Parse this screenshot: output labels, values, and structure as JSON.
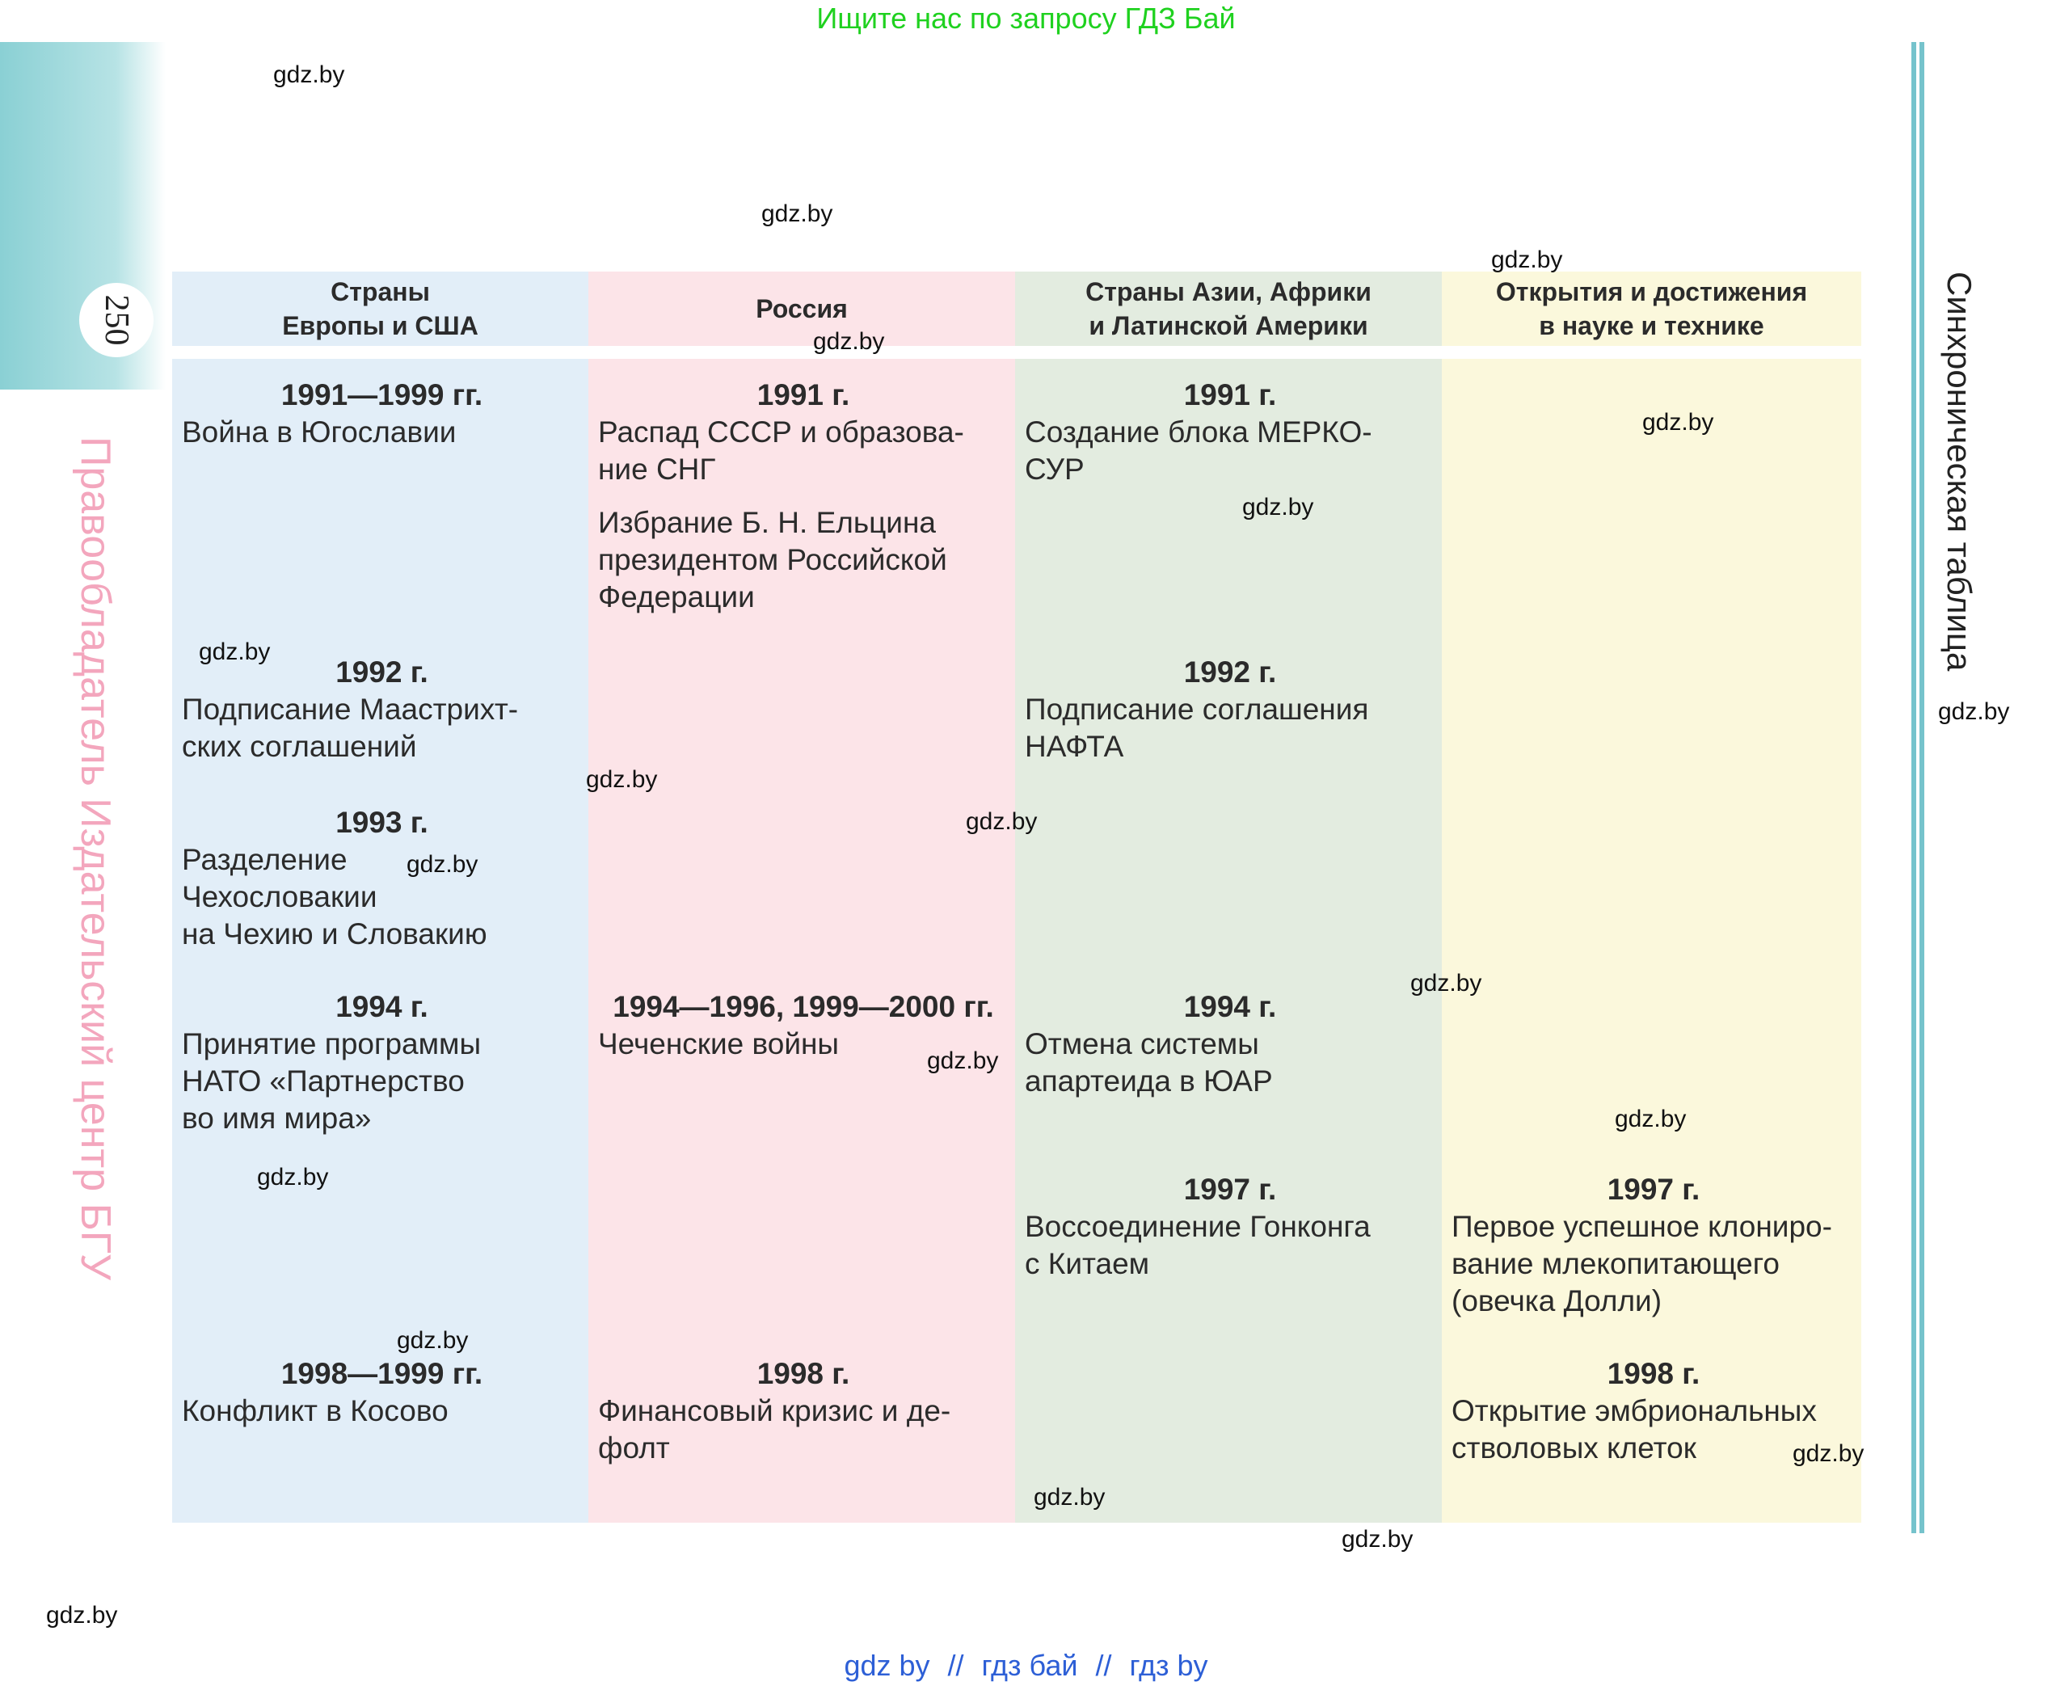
{
  "banner_top": "Ищите нас по запросу ГДЗ Бай",
  "banner_bottom": [
    "gdz by",
    "//",
    "гдз бай",
    "//",
    "гдз by"
  ],
  "page_number": "250",
  "side_left": "Правообладатель Издательский центр БГУ",
  "side_right": "Синхроническая таблица",
  "watermark": "gdz.by",
  "headers": [
    "Страны\nЕвропы и США",
    "Россия",
    "Страны Азии, Африки\nи Латинской Америки",
    "Открытия и достижения\nв науке и технике"
  ],
  "col1": [
    {
      "year": "1991—1999 гг.",
      "text": "Война в Югославии"
    },
    {
      "year": "1992 г.",
      "text": "Подписание Маастрихт-\nских соглашений"
    },
    {
      "year": "1993 г.",
      "text": "Разделение\nЧехословакии\nна Чехию и Словакию"
    },
    {
      "year": "1994 г.",
      "text": "Принятие программы\nНАТО «Партнерство\nво имя мира»"
    },
    {
      "year": "1998—1999 гг.",
      "text": "Конфликт в Косово"
    }
  ],
  "col2": [
    {
      "year": "1991 г.",
      "text": "Распад СССР и образова-\nние СНГ"
    },
    {
      "year": "",
      "text": "Избрание Б. Н. Ельцина\nпрезидентом Российской\nФедерации"
    },
    {
      "year": "1994—1996, 1999—2000 гг.",
      "text": "Чеченские войны"
    },
    {
      "year": "1998 г.",
      "text": "Финансовый кризис и де-\nфолт"
    }
  ],
  "col3": [
    {
      "year": "1991 г.",
      "text": "Создание блока МЕРКО-\nСУР"
    },
    {
      "year": "1992 г.",
      "text": "Подписание соглашения\nНАФТА"
    },
    {
      "year": "1994 г.",
      "text": "Отмена системы\nапартеида в ЮАР"
    },
    {
      "year": "1997 г.",
      "text": "Воссоединение Гонконга\nс Китаем"
    }
  ],
  "col4": [
    {
      "year": "1997 г.",
      "text": "Первое успешное клониро-\nвание млекопитающего\n(овечка Долли)"
    },
    {
      "year": "1998 г.",
      "text": "Открытие эмбриональных\nстволовых клеток"
    }
  ],
  "colors": {
    "europe": "#e2eef8",
    "russia": "#fce4e8",
    "asia": "#e3ece0",
    "science": "#fbf8dc",
    "accent": "#76c3cc"
  }
}
